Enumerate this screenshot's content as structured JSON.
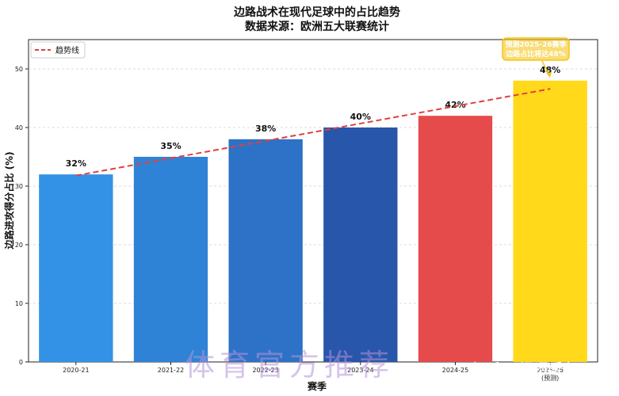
{
  "chart_data": {
    "type": "bar",
    "title": "边路战术在现代足球中的占比趋势",
    "subtitle": "数据来源：欧洲五大联赛统计",
    "xlabel": "赛季",
    "ylabel": "边路进攻得分占比 (%)",
    "categories": [
      "2020-21",
      "2021-22",
      "2022-23",
      "2023-24",
      "2024-25",
      "2025-26\n(预测)"
    ],
    "values": [
      32,
      35,
      38,
      40,
      42,
      48
    ],
    "value_labels": [
      "32%",
      "35%",
      "38%",
      "40%",
      "42%",
      "48%"
    ],
    "bar_colors": [
      "#3492e6",
      "#2f83d6",
      "#2d72c6",
      "#2756aa",
      "#e64b4b",
      "#ffd91a"
    ],
    "ylim": [
      0,
      55
    ],
    "yticks": [
      0,
      10,
      20,
      30,
      40,
      50
    ],
    "grid": "horizontal-dashed",
    "legend": {
      "position": "top-left",
      "entries": [
        "趋势线"
      ]
    },
    "trendline": {
      "style": "dashed",
      "color": "#e04040",
      "start": 31.8,
      "end": 46.6
    },
    "annotation": {
      "lines": [
        "预测2025-26赛季",
        "边路占比将达48%"
      ],
      "target_category": "2025-26\n(预测)",
      "target_value": 48,
      "box_color": "#f5c518"
    }
  },
  "watermarks": {
    "main": "体育官方推荐",
    "credit": "知乎 @温语暖冬"
  }
}
